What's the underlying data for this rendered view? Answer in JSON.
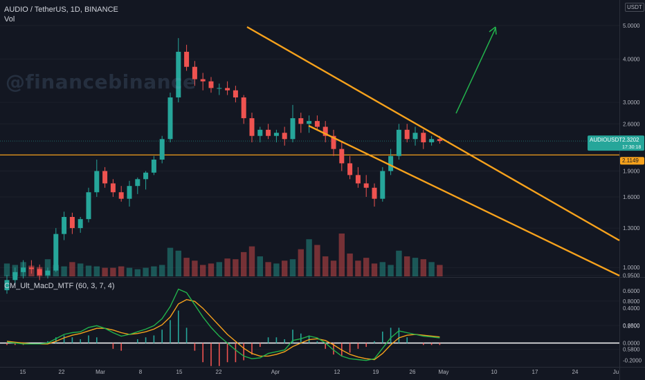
{
  "header": {
    "title": "AUDIO / TetherUS, 1D, BINANCE",
    "volume_label": "Vol",
    "indicator_label": "CM_Ult_MacD_MTF (60, 3, 7, 4)",
    "watermark": "@financebinance",
    "axis_unit": "USDT"
  },
  "colors": {
    "background": "#131722",
    "up": "#26a69a",
    "down": "#ef5350",
    "trendline": "#f7a21c",
    "arrow": "#22b24c",
    "macd_fast": "#22b24c",
    "macd_signal": "#f7a21c"
  },
  "chart_data": [
    {
      "type": "candlestick",
      "title": "AUDIO / TetherUS, 1D, BINANCE",
      "scale": "log",
      "y_ticks": [
        "5.0000",
        "4.0000",
        "3.0000",
        "2.6000",
        "1.9000",
        "1.6000",
        "1.3000",
        "1.0000",
        "0.9500",
        "0.8000",
        "0.6800",
        "0.5800"
      ],
      "x_ticks": [
        "15",
        "22",
        "Mar",
        "8",
        "15",
        "22",
        "Apr",
        "12",
        "19",
        "26",
        "May",
        "10",
        "17",
        "24",
        "Ju"
      ],
      "last_price": {
        "label": "AUDIOUSDT",
        "value": "2.3202",
        "countdown": "17:30:18"
      },
      "level_line": {
        "value": "2.1149"
      },
      "ohlc": [
        [
          0.86,
          0.95,
          0.84,
          0.92
        ],
        [
          0.92,
          1.0,
          0.9,
          0.97
        ],
        [
          0.97,
          1.05,
          0.93,
          1.0
        ],
        [
          1.0,
          1.05,
          0.96,
          0.99
        ],
        [
          0.99,
          1.02,
          0.92,
          0.95
        ],
        [
          0.95,
          1.0,
          0.93,
          0.98
        ],
        [
          0.98,
          1.3,
          0.97,
          1.25
        ],
        [
          1.25,
          1.45,
          1.2,
          1.4
        ],
        [
          1.4,
          1.44,
          1.25,
          1.3
        ],
        [
          1.3,
          1.4,
          1.26,
          1.38
        ],
        [
          1.38,
          1.7,
          1.35,
          1.65
        ],
        [
          1.65,
          2.05,
          1.6,
          1.9
        ],
        [
          1.9,
          1.95,
          1.7,
          1.75
        ],
        [
          1.75,
          1.8,
          1.6,
          1.65
        ],
        [
          1.65,
          1.72,
          1.55,
          1.58
        ],
        [
          1.58,
          1.78,
          1.5,
          1.72
        ],
        [
          1.72,
          1.82,
          1.63,
          1.8
        ],
        [
          1.8,
          1.9,
          1.68,
          1.88
        ],
        [
          1.88,
          2.1,
          1.85,
          2.05
        ],
        [
          2.05,
          2.4,
          2.0,
          2.35
        ],
        [
          2.35,
          3.2,
          2.3,
          3.1
        ],
        [
          3.1,
          4.6,
          3.0,
          4.2
        ],
        [
          4.2,
          4.4,
          3.7,
          3.8
        ],
        [
          3.8,
          3.95,
          3.35,
          3.5
        ],
        [
          3.5,
          3.65,
          3.25,
          3.45
        ],
        [
          3.45,
          3.55,
          3.2,
          3.3
        ],
        [
          3.3,
          3.4,
          3.15,
          3.3
        ],
        [
          3.3,
          3.45,
          3.15,
          3.25
        ],
        [
          3.25,
          3.35,
          3.0,
          3.1
        ],
        [
          3.1,
          3.15,
          2.6,
          2.7
        ],
        [
          2.7,
          2.8,
          2.3,
          2.4
        ],
        [
          2.4,
          2.55,
          2.3,
          2.5
        ],
        [
          2.5,
          2.6,
          2.35,
          2.4
        ],
        [
          2.4,
          2.5,
          2.3,
          2.45
        ],
        [
          2.45,
          2.55,
          2.25,
          2.35
        ],
        [
          2.35,
          2.95,
          2.3,
          2.7
        ],
        [
          2.7,
          2.8,
          2.45,
          2.6
        ],
        [
          2.6,
          2.75,
          2.45,
          2.65
        ],
        [
          2.65,
          2.75,
          2.5,
          2.55
        ],
        [
          2.55,
          2.65,
          2.3,
          2.4
        ],
        [
          2.4,
          2.5,
          2.1,
          2.2
        ],
        [
          2.2,
          2.3,
          1.9,
          2.0
        ],
        [
          2.0,
          2.1,
          1.8,
          1.85
        ],
        [
          1.85,
          1.95,
          1.7,
          1.75
        ],
        [
          1.75,
          1.85,
          1.6,
          1.7
        ],
        [
          1.7,
          1.75,
          1.5,
          1.58
        ],
        [
          1.58,
          1.95,
          1.55,
          1.9
        ],
        [
          1.9,
          2.2,
          1.85,
          2.1
        ],
        [
          2.1,
          2.6,
          2.05,
          2.5
        ],
        [
          2.5,
          2.6,
          2.3,
          2.35
        ],
        [
          2.35,
          2.55,
          2.25,
          2.45
        ],
        [
          2.45,
          2.5,
          2.2,
          2.3
        ],
        [
          2.3,
          2.4,
          2.25,
          2.35
        ],
        [
          2.35,
          2.4,
          2.28,
          2.32
        ]
      ],
      "volume": [
        18,
        16,
        20,
        15,
        13,
        24,
        16,
        14,
        20,
        18,
        15,
        14,
        12,
        12,
        14,
        12,
        10,
        12,
        14,
        16,
        40,
        36,
        26,
        22,
        16,
        18,
        20,
        25,
        24,
        34,
        42,
        28,
        20,
        18,
        22,
        24,
        38,
        52,
        44,
        28,
        22,
        60,
        32,
        22,
        26,
        18,
        20,
        16,
        36,
        28,
        26,
        24,
        20,
        16
      ]
    },
    {
      "type": "line",
      "title": "CM_Ult_MacD_MTF (60, 3, 7, 4)",
      "y_ticks": [
        "0.6000",
        "0.4000",
        "0.2000",
        "0.0000",
        "-0.2000"
      ],
      "ylim": [
        -0.25,
        0.68
      ],
      "series": [
        {
          "name": "macd",
          "values": [
            0.01,
            0.0,
            -0.01,
            -0.01,
            -0.01,
            0.0,
            0.05,
            0.1,
            0.12,
            0.13,
            0.18,
            0.2,
            0.17,
            0.12,
            0.08,
            0.1,
            0.13,
            0.16,
            0.2,
            0.28,
            0.42,
            0.62,
            0.58,
            0.44,
            0.3,
            0.18,
            0.08,
            0.0,
            -0.08,
            -0.15,
            -0.18,
            -0.17,
            -0.12,
            -0.1,
            -0.08,
            0.03,
            0.05,
            0.08,
            0.06,
            0.0,
            -0.08,
            -0.15,
            -0.18,
            -0.19,
            -0.2,
            -0.18,
            -0.06,
            0.06,
            0.14,
            0.12,
            0.1,
            0.08,
            0.07,
            0.06
          ]
        },
        {
          "name": "signal",
          "values": [
            0.02,
            0.01,
            0.0,
            -0.01,
            -0.01,
            -0.01,
            0.02,
            0.06,
            0.09,
            0.11,
            0.14,
            0.17,
            0.17,
            0.15,
            0.12,
            0.1,
            0.11,
            0.13,
            0.16,
            0.21,
            0.3,
            0.45,
            0.5,
            0.48,
            0.4,
            0.3,
            0.2,
            0.1,
            0.02,
            -0.06,
            -0.12,
            -0.15,
            -0.15,
            -0.13,
            -0.1,
            -0.04,
            0.0,
            0.04,
            0.05,
            0.03,
            -0.02,
            -0.08,
            -0.13,
            -0.16,
            -0.18,
            -0.19,
            -0.12,
            -0.02,
            0.06,
            0.09,
            0.1,
            0.09,
            0.08,
            0.07
          ]
        }
      ]
    }
  ]
}
